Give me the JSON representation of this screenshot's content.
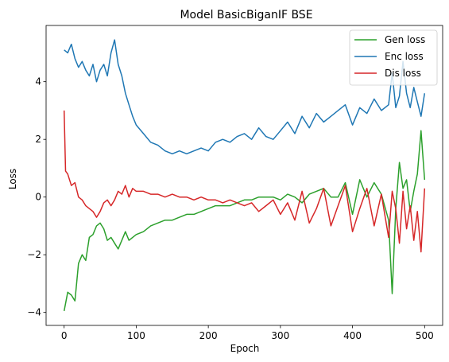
{
  "chart_data": {
    "type": "line",
    "title": "Model BasicBiganIF BSE",
    "xlabel": "Epoch",
    "ylabel": "Loss",
    "xlim": [
      -25,
      525
    ],
    "ylim": [
      -4.45,
      5.95
    ],
    "x_ticks": [
      0,
      100,
      200,
      300,
      400,
      500
    ],
    "y_ticks": [
      -4,
      -2,
      0,
      2,
      4
    ],
    "y_tick_labels": [
      "−4",
      "−2",
      "0",
      "2",
      "4"
    ],
    "grid": false,
    "legend_position": "upper right",
    "series": [
      {
        "name": "Gen loss",
        "color": "#2ca02c",
        "x": [
          0,
          5,
          10,
          15,
          20,
          25,
          30,
          35,
          40,
          45,
          50,
          55,
          60,
          65,
          70,
          75,
          80,
          85,
          90,
          95,
          100,
          110,
          120,
          130,
          140,
          150,
          160,
          170,
          180,
          190,
          200,
          210,
          220,
          230,
          240,
          250,
          260,
          270,
          280,
          290,
          300,
          310,
          320,
          330,
          340,
          350,
          360,
          370,
          380,
          390,
          400,
          410,
          420,
          430,
          440,
          450,
          455,
          460,
          465,
          470,
          475,
          480,
          485,
          490,
          495,
          500
        ],
        "y": [
          -3.95,
          -3.3,
          -3.4,
          -3.6,
          -2.3,
          -2.0,
          -2.2,
          -1.4,
          -1.3,
          -1.0,
          -0.9,
          -1.1,
          -1.5,
          -1.4,
          -1.6,
          -1.8,
          -1.5,
          -1.2,
          -1.5,
          -1.4,
          -1.3,
          -1.2,
          -1.0,
          -0.9,
          -0.8,
          -0.8,
          -0.7,
          -0.6,
          -0.6,
          -0.5,
          -0.4,
          -0.3,
          -0.3,
          -0.3,
          -0.2,
          -0.1,
          -0.1,
          0.0,
          0.0,
          0.0,
          -0.1,
          0.1,
          0.0,
          -0.2,
          0.1,
          0.2,
          0.3,
          0.0,
          0.0,
          0.5,
          -0.6,
          0.6,
          0.0,
          0.5,
          0.1,
          -0.8,
          -3.35,
          -0.4,
          1.2,
          0.3,
          0.6,
          -0.5,
          0.2,
          0.8,
          2.3,
          0.6
        ]
      },
      {
        "name": "Enc loss",
        "color": "#1f77b4",
        "x": [
          0,
          5,
          10,
          15,
          20,
          25,
          30,
          35,
          40,
          45,
          50,
          55,
          60,
          65,
          70,
          75,
          80,
          85,
          90,
          95,
          100,
          110,
          120,
          130,
          140,
          150,
          160,
          170,
          180,
          190,
          200,
          210,
          220,
          230,
          240,
          250,
          260,
          270,
          280,
          290,
          300,
          310,
          320,
          330,
          340,
          350,
          360,
          370,
          380,
          390,
          400,
          410,
          420,
          430,
          440,
          450,
          455,
          460,
          465,
          470,
          475,
          480,
          485,
          490,
          495,
          500
        ],
        "y": [
          5.1,
          5.0,
          5.3,
          4.8,
          4.5,
          4.7,
          4.4,
          4.2,
          4.6,
          4.0,
          4.4,
          4.6,
          4.2,
          5.0,
          5.45,
          4.6,
          4.2,
          3.6,
          3.2,
          2.8,
          2.5,
          2.2,
          1.9,
          1.8,
          1.6,
          1.5,
          1.6,
          1.5,
          1.6,
          1.7,
          1.6,
          1.9,
          2.0,
          1.9,
          2.1,
          2.2,
          2.0,
          2.4,
          2.1,
          2.0,
          2.3,
          2.6,
          2.2,
          2.8,
          2.4,
          2.9,
          2.6,
          2.8,
          3.0,
          3.2,
          2.5,
          3.1,
          2.9,
          3.4,
          3.0,
          3.2,
          4.3,
          3.1,
          3.5,
          4.7,
          3.6,
          3.1,
          3.8,
          3.3,
          2.8,
          3.6
        ]
      },
      {
        "name": "Dis loss",
        "color": "#d62728",
        "x": [
          0,
          2,
          5,
          10,
          15,
          20,
          25,
          30,
          35,
          40,
          45,
          50,
          55,
          60,
          65,
          70,
          75,
          80,
          85,
          90,
          95,
          100,
          110,
          120,
          130,
          140,
          150,
          160,
          170,
          180,
          190,
          200,
          210,
          220,
          230,
          240,
          250,
          260,
          270,
          280,
          290,
          300,
          310,
          320,
          330,
          340,
          350,
          360,
          370,
          380,
          390,
          400,
          410,
          420,
          430,
          440,
          450,
          455,
          460,
          465,
          470,
          475,
          480,
          485,
          490,
          495,
          500
        ],
        "y": [
          3.0,
          0.9,
          0.8,
          0.4,
          0.5,
          0.0,
          -0.1,
          -0.3,
          -0.4,
          -0.5,
          -0.7,
          -0.5,
          -0.2,
          -0.1,
          -0.3,
          -0.1,
          0.2,
          0.1,
          0.4,
          0.0,
          0.3,
          0.2,
          0.2,
          0.1,
          0.1,
          0.0,
          0.1,
          0.0,
          0.0,
          -0.1,
          0.0,
          -0.1,
          -0.1,
          -0.2,
          -0.1,
          -0.2,
          -0.3,
          -0.2,
          -0.5,
          -0.3,
          -0.1,
          -0.6,
          -0.2,
          -0.8,
          0.2,
          -0.9,
          -0.4,
          0.3,
          -1.0,
          -0.3,
          0.4,
          -1.2,
          -0.4,
          0.3,
          -1.0,
          0.1,
          -1.4,
          0.2,
          -0.4,
          -1.6,
          0.2,
          -1.1,
          -0.3,
          -1.5,
          -0.5,
          -1.9,
          0.3
        ]
      }
    ]
  }
}
